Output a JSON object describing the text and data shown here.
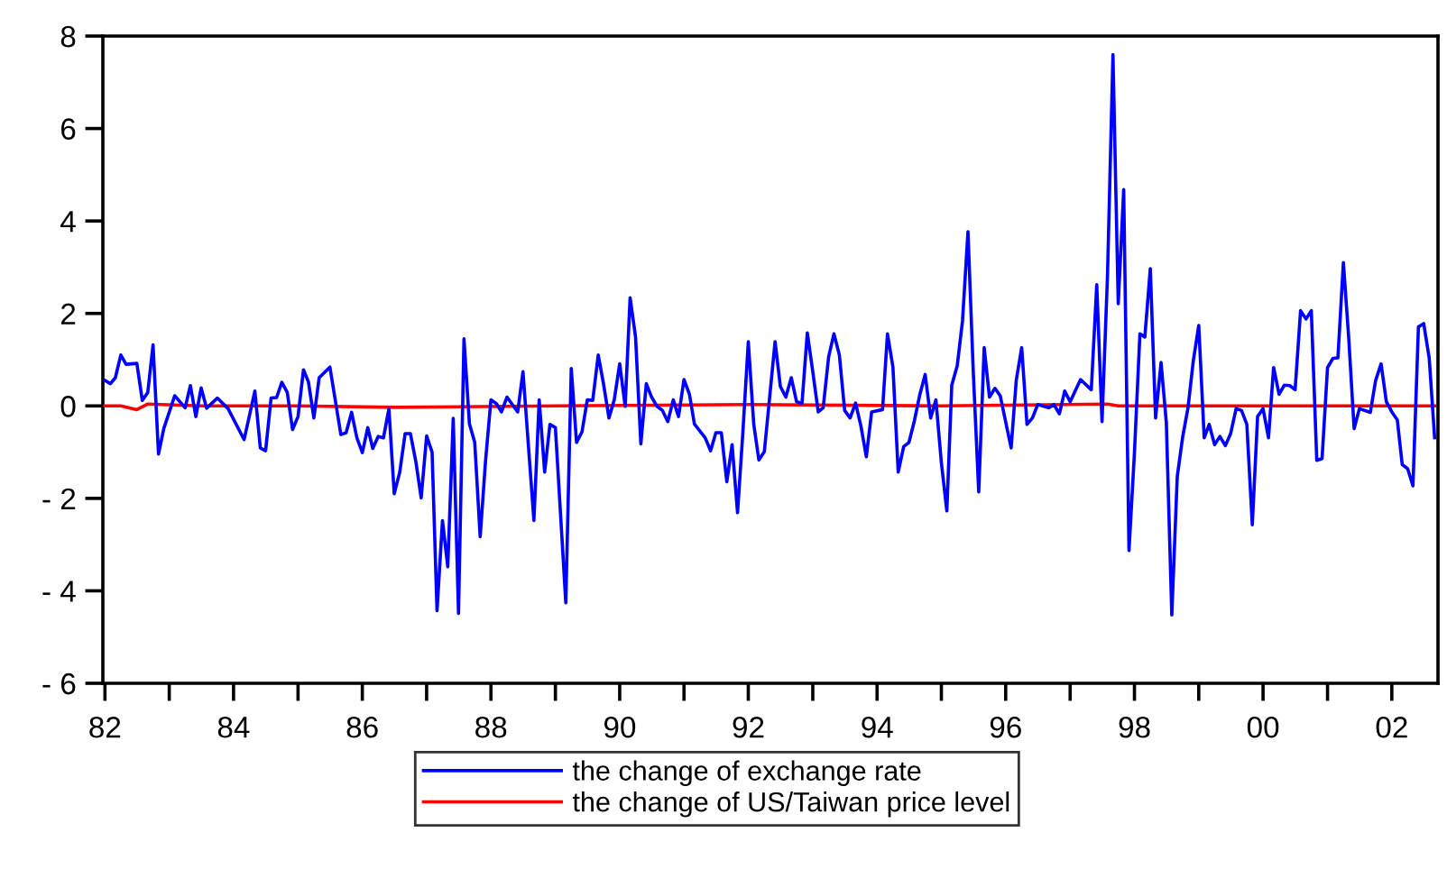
{
  "chart_data": {
    "type": "line",
    "xlim": [
      "1981-12-20",
      "2002-09-20"
    ],
    "xticks": [
      {
        "value": "1982",
        "label": "82"
      },
      {
        "value": "1983",
        "label": null
      },
      {
        "value": "1984",
        "label": "84"
      },
      {
        "value": "1985",
        "label": null
      },
      {
        "value": "1986",
        "label": "86"
      },
      {
        "value": "1987",
        "label": null
      },
      {
        "value": "1988",
        "label": "88"
      },
      {
        "value": "1989",
        "label": null
      },
      {
        "value": "1990",
        "label": "90"
      },
      {
        "value": "1991",
        "label": null
      },
      {
        "value": "1992",
        "label": "92"
      },
      {
        "value": "1993",
        "label": null
      },
      {
        "value": "1994",
        "label": "94"
      },
      {
        "value": "1995",
        "label": null
      },
      {
        "value": "1996",
        "label": "96"
      },
      {
        "value": "1997",
        "label": null
      },
      {
        "value": "1998",
        "label": "98"
      },
      {
        "value": "1999",
        "label": null
      },
      {
        "value": "2000",
        "label": "00"
      },
      {
        "value": "2001",
        "label": null
      },
      {
        "value": "2002",
        "label": "02"
      }
    ],
    "ylim": [
      -6,
      8
    ],
    "yticks": [
      {
        "value": -6,
        "label": "- 6"
      },
      {
        "value": -4,
        "label": "- 4"
      },
      {
        "value": -2,
        "label": "- 2"
      },
      0,
      2,
      4,
      6,
      8
    ],
    "grid": false,
    "legend": "bottom",
    "marker": "none",
    "line_style": "solid",
    "series": [
      {
        "name": "the change of exchange rate",
        "color": "#0000ff",
        "x": [
          "1982-01",
          "1982-02",
          "1982-03",
          "1982-04",
          "1982-05",
          "1982-07",
          "1982-08",
          "1982-09",
          "1982-10",
          "1982-11",
          "1982-12",
          "1983-02",
          "1983-04",
          "1983-05",
          "1983-06",
          "1983-07",
          "1983-08",
          "1983-10",
          "1983-12",
          "1984-03",
          "1984-05",
          "1984-06",
          "1984-07",
          "1984-08",
          "1984-09",
          "1984-10",
          "1984-11",
          "1984-12",
          "1985-01",
          "1985-02",
          "1985-03",
          "1985-04",
          "1985-05",
          "1985-07",
          "1985-09",
          "1985-10",
          "1985-11",
          "1985-12",
          "1986-01",
          "1986-02",
          "1986-03",
          "1986-04",
          "1986-05",
          "1986-06",
          "1986-07",
          "1986-08",
          "1986-09",
          "1986-10",
          "1986-11",
          "1986-12",
          "1987-01",
          "1987-02",
          "1987-03",
          "1987-04",
          "1987-05",
          "1987-06",
          "1987-07",
          "1987-08",
          "1987-09",
          "1987-10",
          "1987-11",
          "1987-12",
          "1988-01",
          "1988-02",
          "1988-03",
          "1988-04",
          "1988-06",
          "1988-07",
          "1988-09",
          "1988-10",
          "1988-11",
          "1988-12",
          "1989-01",
          "1989-03",
          "1989-04",
          "1989-05",
          "1989-06",
          "1989-07",
          "1989-08",
          "1989-09",
          "1989-10",
          "1989-11",
          "1989-12",
          "1990-01",
          "1990-02",
          "1990-03",
          "1990-04",
          "1990-05",
          "1990-06",
          "1990-07",
          "1990-08",
          "1990-09",
          "1990-10",
          "1990-11",
          "1990-12",
          "1991-01",
          "1991-02",
          "1991-03",
          "1991-05",
          "1991-06",
          "1991-07",
          "1991-08",
          "1991-09",
          "1991-10",
          "1991-11",
          "1991-12",
          "1992-01",
          "1992-02",
          "1992-03",
          "1992-04",
          "1992-06",
          "1992-07",
          "1992-08",
          "1992-09",
          "1992-10",
          "1992-11",
          "1992-12",
          "1993-01",
          "1993-02",
          "1993-03",
          "1993-04",
          "1993-05",
          "1993-06",
          "1993-07",
          "1993-08",
          "1993-09",
          "1993-10",
          "1993-11",
          "1993-12",
          "1994-02",
          "1994-03",
          "1994-04",
          "1994-05",
          "1994-06",
          "1994-07",
          "1994-08",
          "1994-09",
          "1994-10",
          "1994-11",
          "1994-12",
          "1995-01",
          "1995-02",
          "1995-03",
          "1995-04",
          "1995-05",
          "1995-06",
          "1995-07",
          "1995-08",
          "1995-09",
          "1995-10",
          "1995-11",
          "1995-12",
          "1996-02",
          "1996-03",
          "1996-04",
          "1996-05",
          "1996-06",
          "1996-07",
          "1996-09",
          "1996-10",
          "1996-11",
          "1996-12",
          "1997-01",
          "1997-03",
          "1997-05",
          "1997-06",
          "1997-07",
          "1997-08",
          "1997-09",
          "1997-10",
          "1997-11",
          "1997-12",
          "1998-01",
          "1998-02",
          "1998-03",
          "1998-04",
          "1998-05",
          "1998-06",
          "1998-07",
          "1998-08",
          "1998-09",
          "1998-10",
          "1998-11",
          "1998-12",
          "1999-01",
          "1999-02",
          "1999-03",
          "1999-04",
          "1999-05",
          "1999-06",
          "1999-07",
          "1999-08",
          "1999-09",
          "1999-10",
          "1999-11",
          "1999-12",
          "2000-01",
          "2000-02",
          "2000-03",
          "2000-04",
          "2000-05",
          "2000-06",
          "2000-07",
          "2000-08",
          "2000-09",
          "2000-10",
          "2000-11",
          "2000-12",
          "2001-01",
          "2001-02",
          "2001-03",
          "2001-04",
          "2001-05",
          "2001-06",
          "2001-07",
          "2001-09",
          "2001-10",
          "2001-11",
          "2001-12",
          "2002-01",
          "2002-02",
          "2002-03",
          "2002-04",
          "2002-05",
          "2002-06",
          "2002-07",
          "2002-08",
          "2002-09"
        ],
        "values": [
          0.55,
          0.48,
          0.61,
          1.1,
          0.9,
          0.92,
          0.12,
          0.29,
          1.32,
          -1.04,
          -0.49,
          0.22,
          -0.04,
          0.44,
          -0.23,
          0.39,
          -0.05,
          0.17,
          -0.06,
          -0.73,
          0.32,
          -0.91,
          -0.97,
          0.17,
          0.18,
          0.51,
          0.29,
          -0.51,
          -0.23,
          0.78,
          0.52,
          -0.26,
          0.61,
          0.84,
          -0.62,
          -0.58,
          -0.14,
          -0.69,
          -1.01,
          -0.47,
          -0.92,
          -0.66,
          -0.69,
          -0.06,
          -1.9,
          -1.44,
          -0.6,
          -0.6,
          -1.21,
          -1.99,
          -0.65,
          -1.0,
          -4.43,
          -2.48,
          -3.48,
          -0.27,
          -4.49,
          1.45,
          -0.39,
          -0.79,
          -2.83,
          -1.21,
          0.13,
          0.05,
          -0.13,
          0.19,
          -0.13,
          0.74,
          -2.48,
          0.13,
          -1.43,
          -0.4,
          -0.47,
          -4.26,
          0.81,
          -0.79,
          -0.56,
          0.13,
          0.12,
          1.1,
          0.48,
          -0.26,
          0.13,
          0.91,
          -0.01,
          2.34,
          1.49,
          -0.82,
          0.48,
          0.19,
          -0.01,
          -0.1,
          -0.34,
          0.13,
          -0.23,
          0.57,
          0.25,
          -0.39,
          -0.69,
          -0.97,
          -0.58,
          -0.58,
          -1.64,
          -0.84,
          -2.31,
          -0.58,
          1.39,
          -0.4,
          -1.17,
          -0.99,
          1.39,
          0.42,
          0.19,
          0.61,
          0.09,
          0.06,
          1.58,
          0.74,
          -0.13,
          -0.04,
          1.06,
          1.56,
          1.1,
          -0.1,
          -0.26,
          0.06,
          -0.43,
          -1.1,
          -0.13,
          -0.08,
          1.56,
          0.84,
          -1.43,
          -0.88,
          -0.79,
          -0.32,
          0.25,
          0.68,
          -0.26,
          0.13,
          -1.23,
          -2.27,
          0.45,
          0.87,
          1.84,
          3.77,
          0.74,
          -1.86,
          1.26,
          0.19,
          0.38,
          0.22,
          -0.91,
          0.55,
          1.26,
          -0.4,
          -0.26,
          0.03,
          -0.04,
          0.03,
          -0.17,
          0.32,
          0.09,
          0.57,
          0.35,
          2.62,
          -0.34,
          2.82,
          7.6,
          2.21,
          4.68,
          -3.13,
          -1.01,
          1.56,
          1.49,
          2.97,
          -0.26,
          0.94,
          -0.36,
          -4.52,
          -1.53,
          -0.69,
          -0.04,
          0.97,
          1.74,
          -0.69,
          -0.4,
          -0.84,
          -0.66,
          -0.86,
          -0.6,
          -0.06,
          -0.1,
          -0.4,
          -2.57,
          -0.23,
          -0.06,
          -0.69,
          0.83,
          0.25,
          0.45,
          0.44,
          0.35,
          2.06,
          1.88,
          2.06,
          -1.18,
          -1.14,
          0.83,
          1.03,
          1.04,
          3.1,
          1.49,
          -0.49,
          -0.06,
          -0.14,
          0.55,
          0.91,
          0.09,
          -0.13,
          -0.3,
          -1.27,
          -1.36,
          -1.73,
          1.71,
          1.78,
          1.04,
          -0.69
        ]
      },
      {
        "name": "the change of US/Taiwan price level",
        "color": "#ff0000",
        "x": [
          "1982-01",
          "1982-04",
          "1982-07",
          "1982-09",
          "1983-07",
          "1985-01",
          "1986-07",
          "1989-01",
          "1992-01",
          "1995-01",
          "1997-08",
          "1997-10",
          "2000-01",
          "2002-09"
        ],
        "values": [
          0.0,
          0.0,
          -0.08,
          0.04,
          0.0,
          0.0,
          -0.03,
          0.0,
          0.03,
          0.0,
          0.04,
          0.0,
          0.0,
          0.0
        ]
      }
    ]
  }
}
